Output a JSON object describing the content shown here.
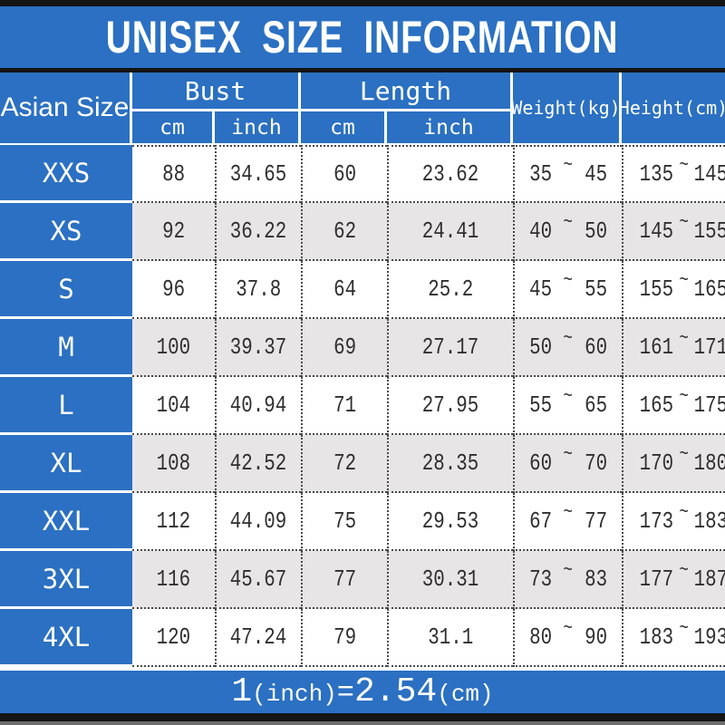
{
  "title": "UNISEX SIZE INFORMATION",
  "colors": {
    "banner_blue": "#2b70c2",
    "row_alt_gray": "#e7e5e6",
    "number_text": "#2f2f2f",
    "white": "#ffffff",
    "bar_black": "#141414"
  },
  "header": {
    "size_col": "Asian Size",
    "bust": "Bust",
    "length": "Length",
    "bust_subs": [
      "cm",
      "inch"
    ],
    "length_subs": [
      "cm",
      "inch"
    ],
    "weight": "Weight(kg)",
    "height": "Height(cm)"
  },
  "tilde": "~",
  "footer": {
    "value_1": "1",
    "unit_1": "(inch)",
    "equals": "=",
    "value_2": "2.54",
    "unit_2": "(cm)"
  },
  "chart_data": {
    "type": "table",
    "title": "UNISEX SIZE INFORMATION",
    "columns": [
      "Asian Size",
      "Bust cm",
      "Bust inch",
      "Length cm",
      "Length inch",
      "Weight(kg)",
      "Height(cm)"
    ],
    "rows": [
      {
        "size": "XXS",
        "bust_cm": "88",
        "bust_inch": "34.65",
        "length_cm": "60",
        "length_inch": "23.62",
        "weight_min": "35",
        "weight_max": "45",
        "height_min": "135",
        "height_max": "145"
      },
      {
        "size": "XS",
        "bust_cm": "92",
        "bust_inch": "36.22",
        "length_cm": "62",
        "length_inch": "24.41",
        "weight_min": "40",
        "weight_max": "50",
        "height_min": "145",
        "height_max": "155"
      },
      {
        "size": "S",
        "bust_cm": "96",
        "bust_inch": "37.8",
        "length_cm": "64",
        "length_inch": "25.2",
        "weight_min": "45",
        "weight_max": "55",
        "height_min": "155",
        "height_max": "165"
      },
      {
        "size": "M",
        "bust_cm": "100",
        "bust_inch": "39.37",
        "length_cm": "69",
        "length_inch": "27.17",
        "weight_min": "50",
        "weight_max": "60",
        "height_min": "161",
        "height_max": "171"
      },
      {
        "size": "L",
        "bust_cm": "104",
        "bust_inch": "40.94",
        "length_cm": "71",
        "length_inch": "27.95",
        "weight_min": "55",
        "weight_max": "65",
        "height_min": "165",
        "height_max": "175"
      },
      {
        "size": "XL",
        "bust_cm": "108",
        "bust_inch": "42.52",
        "length_cm": "72",
        "length_inch": "28.35",
        "weight_min": "60",
        "weight_max": "70",
        "height_min": "170",
        "height_max": "180"
      },
      {
        "size": "XXL",
        "bust_cm": "112",
        "bust_inch": "44.09",
        "length_cm": "75",
        "length_inch": "29.53",
        "weight_min": "67",
        "weight_max": "77",
        "height_min": "173",
        "height_max": "183"
      },
      {
        "size": "3XL",
        "bust_cm": "116",
        "bust_inch": "45.67",
        "length_cm": "77",
        "length_inch": "30.31",
        "weight_min": "73",
        "weight_max": "83",
        "height_min": "177",
        "height_max": "187"
      },
      {
        "size": "4XL",
        "bust_cm": "120",
        "bust_inch": "47.24",
        "length_cm": "79",
        "length_inch": "31.1",
        "weight_min": "80",
        "weight_max": "90",
        "height_min": "183",
        "height_max": "193"
      }
    ],
    "note": "1(inch)=2.54(cm)"
  }
}
